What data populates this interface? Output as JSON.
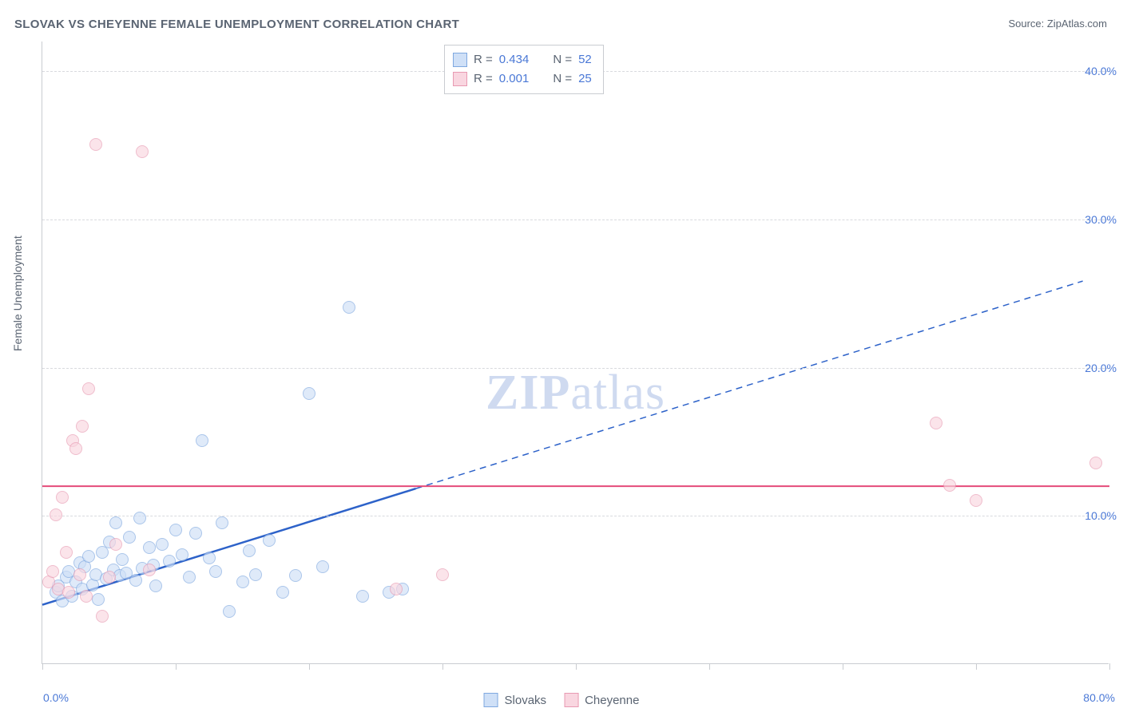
{
  "title": "SLOVAK VS CHEYENNE FEMALE UNEMPLOYMENT CORRELATION CHART",
  "source_label": "Source: ",
  "source_name": "ZipAtlas.com",
  "ylabel": "Female Unemployment",
  "watermark_zip": "ZIP",
  "watermark_atlas": "atlas",
  "chart": {
    "type": "scatter",
    "xlim": [
      0,
      80
    ],
    "ylim": [
      0,
      42
    ],
    "x_ticks": [
      0,
      10,
      20,
      30,
      40,
      50,
      60,
      70,
      80
    ],
    "y_gridlines": [
      10,
      20,
      30,
      40
    ],
    "y_tick_labels": [
      "10.0%",
      "20.0%",
      "30.0%",
      "40.0%"
    ],
    "x_axis_min_label": "0.0%",
    "x_axis_max_label": "80.0%",
    "background_color": "#ffffff",
    "grid_color": "#d8dade",
    "axis_color": "#c9ccd1",
    "label_color": "#5a6472",
    "value_color": "#4a78d6",
    "point_radius": 8,
    "series": [
      {
        "name": "Slovaks",
        "fill": "#cfe0f7",
        "stroke": "#7fa8e0",
        "fill_opacity": 0.65,
        "trend": {
          "slope": 0.28,
          "intercept": 4.0,
          "x_solid_end": 28,
          "x_dash_end": 78,
          "color": "#2d62c9",
          "width": 2
        },
        "points": [
          [
            1,
            4.8
          ],
          [
            1.2,
            5.2
          ],
          [
            1.5,
            4.2
          ],
          [
            1.8,
            5.8
          ],
          [
            2,
            6.2
          ],
          [
            2.2,
            4.5
          ],
          [
            2.5,
            5.5
          ],
          [
            2.8,
            6.8
          ],
          [
            3,
            5.0
          ],
          [
            3.2,
            6.5
          ],
          [
            3.5,
            7.2
          ],
          [
            3.8,
            5.3
          ],
          [
            4,
            6.0
          ],
          [
            4.2,
            4.3
          ],
          [
            4.5,
            7.5
          ],
          [
            4.8,
            5.7
          ],
          [
            5,
            8.2
          ],
          [
            5.3,
            6.3
          ],
          [
            5.5,
            9.5
          ],
          [
            5.8,
            5.9
          ],
          [
            6,
            7.0
          ],
          [
            6.3,
            6.1
          ],
          [
            6.5,
            8.5
          ],
          [
            7,
            5.6
          ],
          [
            7.3,
            9.8
          ],
          [
            7.5,
            6.4
          ],
          [
            8,
            7.8
          ],
          [
            8.3,
            6.6
          ],
          [
            8.5,
            5.2
          ],
          [
            9,
            8.0
          ],
          [
            9.5,
            6.9
          ],
          [
            10,
            9.0
          ],
          [
            10.5,
            7.3
          ],
          [
            11,
            5.8
          ],
          [
            11.5,
            8.8
          ],
          [
            12,
            15.0
          ],
          [
            12.5,
            7.1
          ],
          [
            13,
            6.2
          ],
          [
            13.5,
            9.5
          ],
          [
            14,
            3.5
          ],
          [
            15,
            5.5
          ],
          [
            15.5,
            7.6
          ],
          [
            16,
            6.0
          ],
          [
            17,
            8.3
          ],
          [
            18,
            4.8
          ],
          [
            19,
            5.9
          ],
          [
            20,
            18.2
          ],
          [
            21,
            6.5
          ],
          [
            23,
            24.0
          ],
          [
            24,
            4.5
          ],
          [
            26,
            4.8
          ],
          [
            27,
            5.0
          ]
        ]
      },
      {
        "name": "Cheyenne",
        "fill": "#f9d6e0",
        "stroke": "#e89ab2",
        "fill_opacity": 0.65,
        "trend": {
          "y_const": 12.0,
          "x_start": 0,
          "x_end": 80,
          "color": "#e54b7a",
          "width": 2
        },
        "points": [
          [
            0.5,
            5.5
          ],
          [
            0.8,
            6.2
          ],
          [
            1,
            10.0
          ],
          [
            1.2,
            5.0
          ],
          [
            1.5,
            11.2
          ],
          [
            1.8,
            7.5
          ],
          [
            2,
            4.8
          ],
          [
            2.3,
            15.0
          ],
          [
            2.5,
            14.5
          ],
          [
            2.8,
            6.0
          ],
          [
            3,
            16.0
          ],
          [
            3.3,
            4.5
          ],
          [
            3.5,
            18.5
          ],
          [
            4,
            35.0
          ],
          [
            4.5,
            3.2
          ],
          [
            5,
            5.8
          ],
          [
            5.5,
            8.0
          ],
          [
            7.5,
            34.5
          ],
          [
            8,
            6.3
          ],
          [
            26.5,
            5.0
          ],
          [
            30,
            6.0
          ],
          [
            67,
            16.2
          ],
          [
            68,
            12.0
          ],
          [
            70,
            11.0
          ],
          [
            79,
            13.5
          ]
        ]
      }
    ]
  },
  "legend_top": {
    "rows": [
      {
        "swatch_fill": "#cfe0f7",
        "swatch_stroke": "#7fa8e0",
        "r_label": "R = ",
        "r": "0.434",
        "n_label": "N = ",
        "n": "52"
      },
      {
        "swatch_fill": "#f9d6e0",
        "swatch_stroke": "#e89ab2",
        "r_label": "R = ",
        "r": "0.001",
        "n_label": "N = ",
        "n": "25"
      }
    ]
  },
  "legend_bottom": [
    {
      "swatch_fill": "#cfe0f7",
      "swatch_stroke": "#7fa8e0",
      "label": "Slovaks"
    },
    {
      "swatch_fill": "#f9d6e0",
      "swatch_stroke": "#e89ab2",
      "label": "Cheyenne"
    }
  ]
}
